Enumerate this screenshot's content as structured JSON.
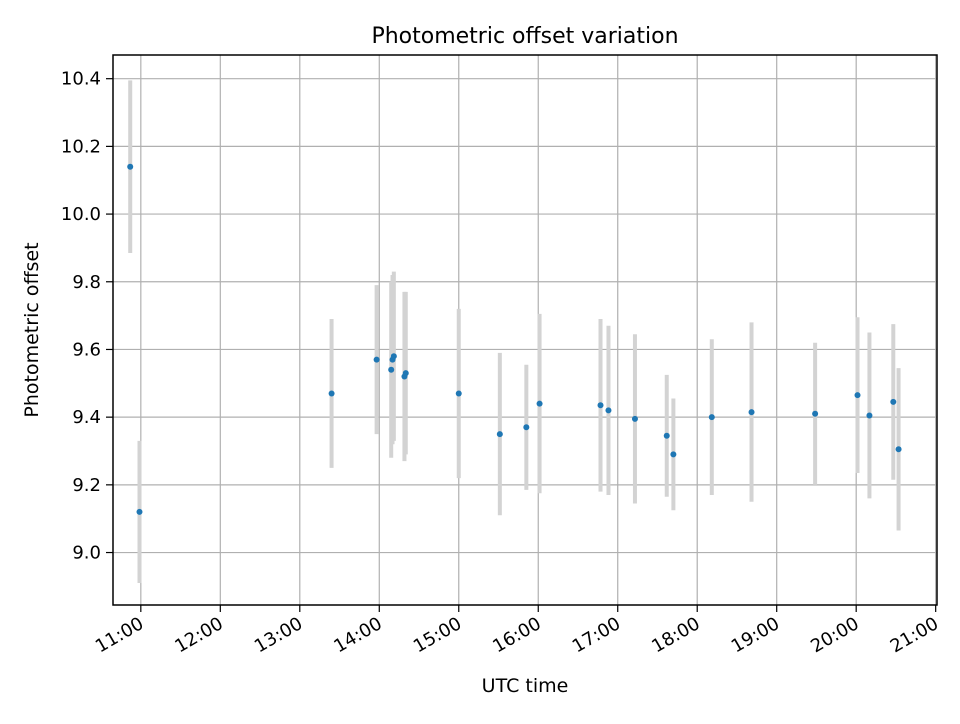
{
  "chart_data": {
    "type": "scatter",
    "title": "Photometric offset variation",
    "xlabel": "UTC time",
    "ylabel": "Photometric offset",
    "xlim": [
      "10:39",
      "21:01"
    ],
    "ylim": [
      8.845,
      10.47
    ],
    "x_ticks": [
      "11:00",
      "12:00",
      "13:00",
      "14:00",
      "15:00",
      "16:00",
      "17:00",
      "18:00",
      "19:00",
      "20:00",
      "21:00"
    ],
    "y_ticks": [
      "9.0",
      "9.2",
      "9.4",
      "9.6",
      "9.8",
      "10.0",
      "10.2",
      "10.4"
    ],
    "grid": true,
    "colors": {
      "points": "#1f77b4",
      "errorbars": "#d3d3d3",
      "grid": "#b0b0b0"
    },
    "series": [
      {
        "points": [
          {
            "time": "10:52",
            "y": 10.14,
            "yerr": 0.255
          },
          {
            "time": "10:59",
            "y": 9.12,
            "yerr": 0.21
          },
          {
            "time": "13:24",
            "y": 9.47,
            "yerr": 0.22
          },
          {
            "time": "13:58",
            "y": 9.57,
            "yerr": 0.22
          },
          {
            "time": "14:09",
            "y": 9.54,
            "yerr": 0.26
          },
          {
            "time": "14:10",
            "y": 9.57,
            "yerr": 0.25
          },
          {
            "time": "14:11",
            "y": 9.58,
            "yerr": 0.25
          },
          {
            "time": "14:19",
            "y": 9.52,
            "yerr": 0.25
          },
          {
            "time": "14:20",
            "y": 9.53,
            "yerr": 0.24
          },
          {
            "time": "15:00",
            "y": 9.47,
            "yerr": 0.25
          },
          {
            "time": "15:31",
            "y": 9.35,
            "yerr": 0.24
          },
          {
            "time": "15:51",
            "y": 9.37,
            "yerr": 0.185
          },
          {
            "time": "16:01",
            "y": 9.44,
            "yerr": 0.265
          },
          {
            "time": "16:47",
            "y": 9.435,
            "yerr": 0.255
          },
          {
            "time": "16:53",
            "y": 9.42,
            "yerr": 0.25
          },
          {
            "time": "17:13",
            "y": 9.395,
            "yerr": 0.25
          },
          {
            "time": "17:37",
            "y": 9.345,
            "yerr": 0.18
          },
          {
            "time": "17:42",
            "y": 9.29,
            "yerr": 0.165
          },
          {
            "time": "18:11",
            "y": 9.4,
            "yerr": 0.23
          },
          {
            "time": "18:41",
            "y": 9.415,
            "yerr": 0.265
          },
          {
            "time": "19:29",
            "y": 9.41,
            "yerr": 0.21
          },
          {
            "time": "20:01",
            "y": 9.465,
            "yerr": 0.23
          },
          {
            "time": "20:10",
            "y": 9.405,
            "yerr": 0.245
          },
          {
            "time": "20:28",
            "y": 9.445,
            "yerr": 0.23
          },
          {
            "time": "20:32",
            "y": 9.305,
            "yerr": 0.24
          }
        ]
      }
    ]
  }
}
